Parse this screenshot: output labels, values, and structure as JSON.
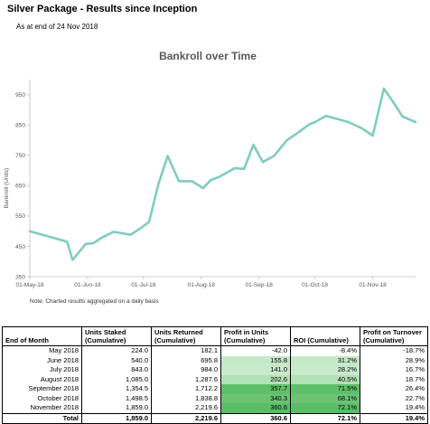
{
  "header": {
    "title": "Silver Package - Results since Inception",
    "subtitle": "As at end of 24 Nov 2018"
  },
  "chart_data": {
    "type": "line",
    "title": "Bankroll over Time",
    "ylabel": "Bankroll (Units)",
    "xlabel": "",
    "ylim": [
      350,
      1000
    ],
    "yticks": [
      350,
      450,
      550,
      650,
      750,
      850,
      950
    ],
    "xticks": [
      "01-May-18",
      "01-Jun-18",
      "01-Jul-18",
      "01-Aug-18",
      "01-Sep-18",
      "01-Oct-18",
      "01-Nov-18"
    ],
    "xdate_range": [
      "2018-05-01",
      "2018-11-24"
    ],
    "grid": false,
    "line_color": "#7ecdc0",
    "series": [
      {
        "x": [
          "2018-05-01",
          "2018-05-21",
          "2018-05-24",
          "2018-05-31",
          "2018-06-04",
          "2018-06-09",
          "2018-06-15",
          "2018-06-24",
          "2018-06-29",
          "2018-07-04",
          "2018-07-09",
          "2018-07-14",
          "2018-07-20",
          "2018-07-27",
          "2018-08-02",
          "2018-08-06",
          "2018-08-11",
          "2018-08-19",
          "2018-08-24",
          "2018-08-29",
          "2018-09-03",
          "2018-09-09",
          "2018-09-16",
          "2018-09-22",
          "2018-09-28",
          "2018-10-01",
          "2018-10-07",
          "2018-10-13",
          "2018-10-19",
          "2018-10-26",
          "2018-11-01",
          "2018-11-07",
          "2018-11-11",
          "2018-11-17",
          "2018-11-24"
        ],
        "values": [
          500,
          465,
          405,
          458,
          460,
          480,
          498,
          488,
          508,
          530,
          655,
          748,
          665,
          665,
          642,
          668,
          680,
          708,
          705,
          785,
          728,
          748,
          800,
          825,
          852,
          860,
          880,
          870,
          860,
          840,
          815,
          970,
          935,
          878,
          860
        ]
      }
    ],
    "footnote": "Note: Charted results aggregated on a daily basis"
  },
  "table": {
    "headers": [
      "End of Month",
      "Units Staked (Cumulative)",
      "Units Returned (Cumulative)",
      "Profit in Units (Cumulative)",
      "ROI (Cumulative)",
      "Profit on Turnover (Cumulative)"
    ],
    "rows": [
      [
        "May 2018",
        "224.0",
        "182.1",
        "-42.0",
        "-8.4%",
        "-18.7%"
      ],
      [
        "June 2018",
        "540.0",
        "695.8",
        "155.8",
        "31.2%",
        "28.9%"
      ],
      [
        "July 2018",
        "843.0",
        "984.0",
        "141.0",
        "28.2%",
        "16.7%"
      ],
      [
        "August 2018",
        "1,085.0",
        "1,287.6",
        "202.6",
        "40.5%",
        "18.7%"
      ],
      [
        "September 2018",
        "1,354.5",
        "1,712.2",
        "357.7",
        "71.5%",
        "26.4%"
      ],
      [
        "October 2018",
        "1,498.5",
        "1,838.8",
        "340.3",
        "68.1%",
        "22.7%"
      ],
      [
        "November 2018",
        "1,859.0",
        "2,219.6",
        "360.6",
        "72.1%",
        "19.4%"
      ]
    ],
    "total": [
      "Total",
      "1,859.0",
      "2,219.6",
      "360.6",
      "72.1%",
      "19.4%"
    ],
    "heat_colors": [
      "#ffffff",
      "#c6e9c8",
      "#c9eacb",
      "#b2e1b5",
      "#5fbf6a",
      "#6cc375",
      "#5bbd66"
    ]
  }
}
